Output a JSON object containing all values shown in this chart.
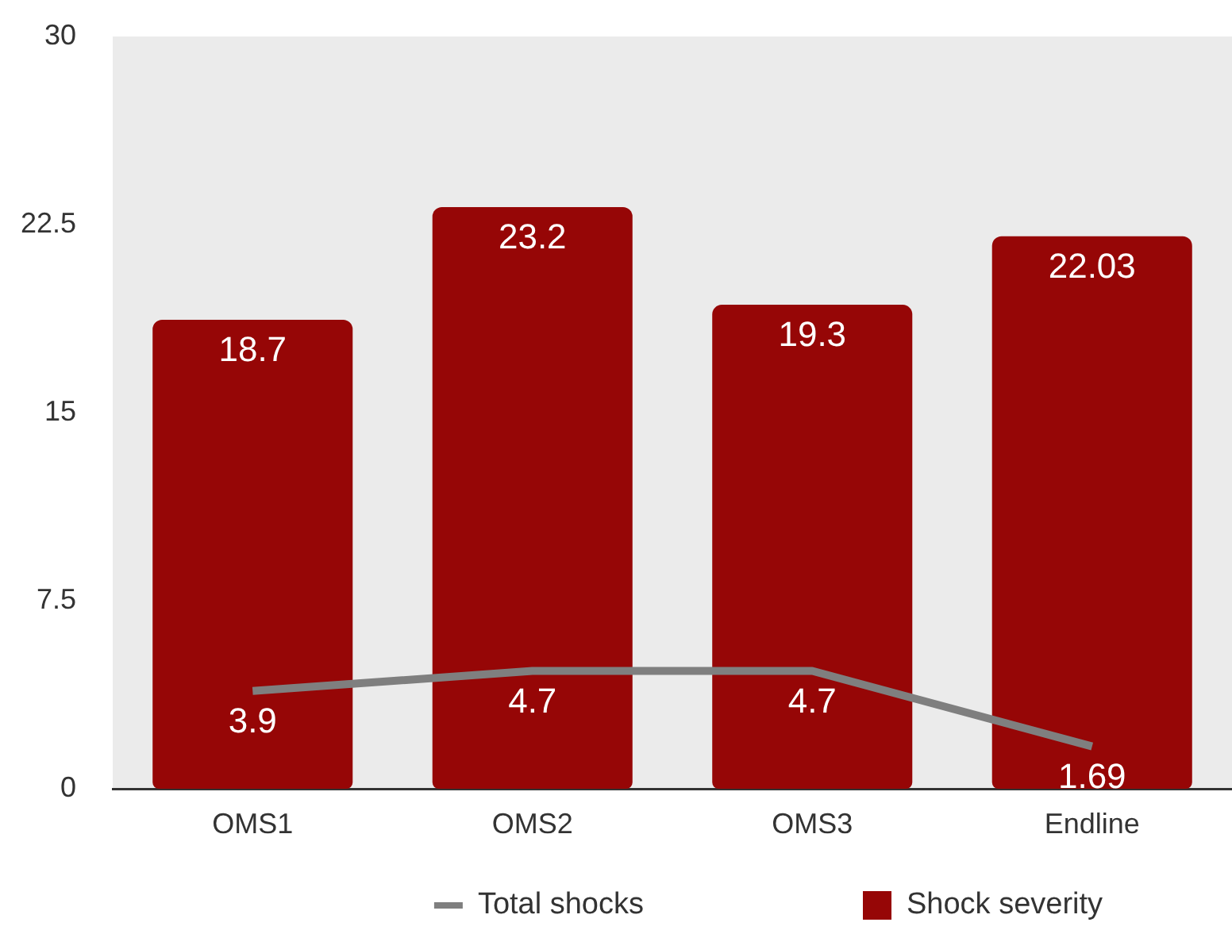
{
  "chart_data": {
    "type": "bar",
    "categories": [
      "OMS1",
      "OMS2",
      "OMS3",
      "Endline"
    ],
    "series": [
      {
        "name": "Total shocks",
        "type": "line",
        "color": "#7f7f7f",
        "values": [
          3.9,
          4.7,
          4.7,
          1.69
        ]
      },
      {
        "name": "Shock severity",
        "color": "#960606",
        "values": [
          18.7,
          23.2,
          19.3,
          22.03
        ]
      }
    ],
    "ylim": [
      0,
      30
    ],
    "yticks": [
      0,
      7.5,
      15,
      22.5,
      30
    ],
    "grid": false,
    "legend": "bottom",
    "data_labels": true,
    "marker": "none"
  }
}
